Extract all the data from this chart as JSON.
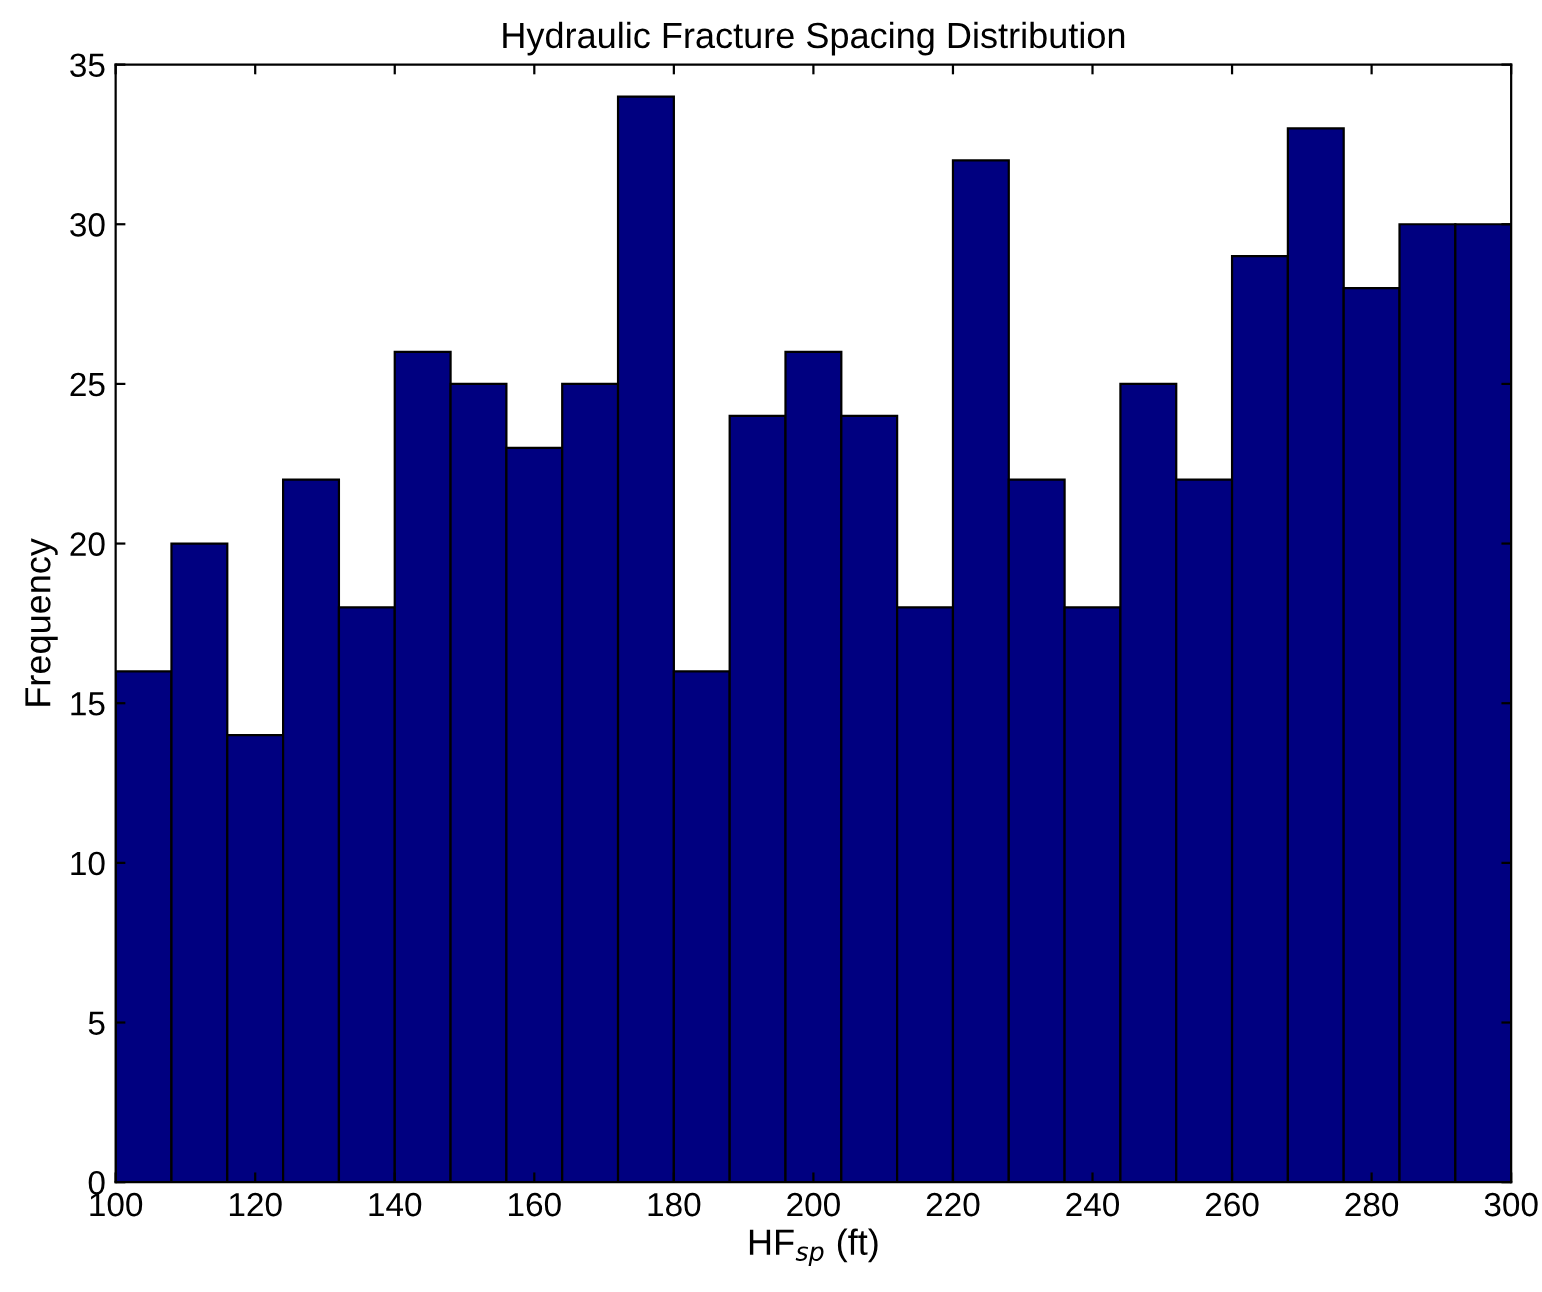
{
  "chart_data": {
    "type": "histogram",
    "title": "Hydraulic Fracture Spacing Distribution",
    "xlabel": "HF$_{sp}$ (ft)",
    "ylabel": "Frequency",
    "bins": [
      100,
      108,
      116,
      124,
      132,
      140,
      148,
      156,
      164,
      172,
      180,
      188,
      196,
      204,
      212,
      220,
      228,
      236,
      244,
      252,
      260,
      268,
      276,
      284,
      292,
      300
    ],
    "values": [
      16,
      20,
      14,
      22,
      18,
      26,
      25,
      23,
      25,
      34,
      16,
      24,
      26,
      24,
      18,
      32,
      22,
      18,
      25,
      22,
      29,
      33,
      28,
      30,
      30
    ],
    "color": "#000080",
    "xlim": [
      100,
      300
    ],
    "xticks": [
      100,
      120,
      140,
      160,
      180,
      200,
      220,
      240,
      260,
      280,
      300
    ],
    "ylim": [
      0,
      35
    ],
    "yticks": [
      0,
      5,
      10,
      15,
      20,
      25,
      30,
      35
    ],
    "grid": false
  }
}
